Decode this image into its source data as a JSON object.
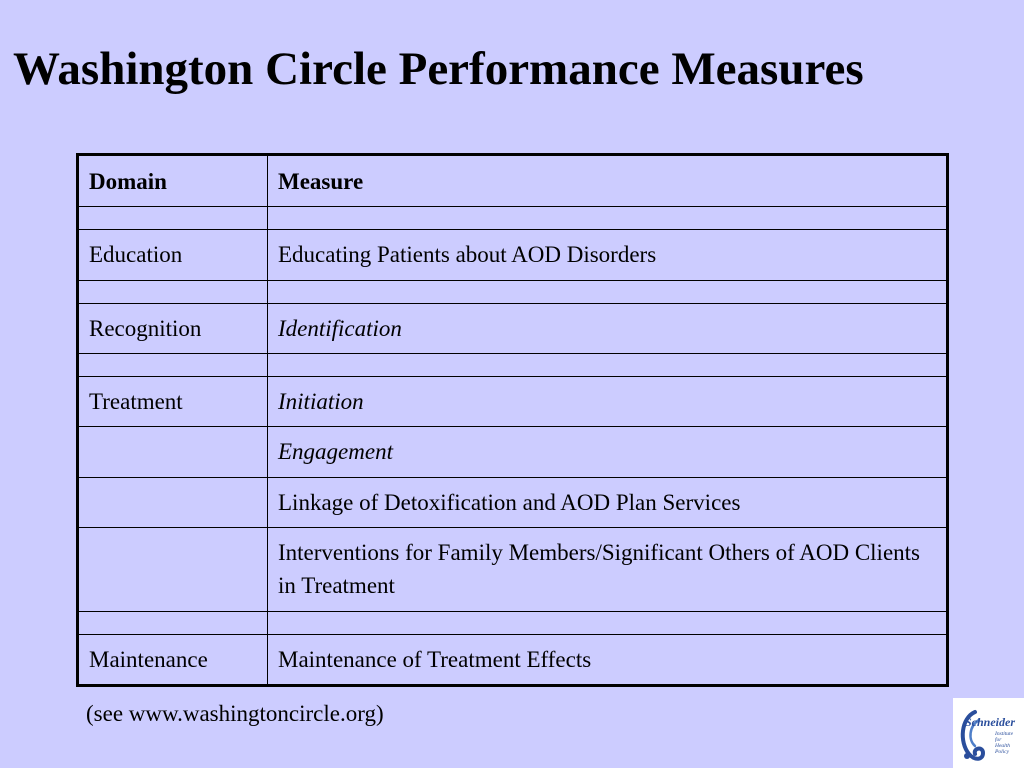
{
  "title": "Washington Circle Performance Measures",
  "table": {
    "headers": {
      "domain": "Domain",
      "measure": "Measure"
    },
    "rows": [
      {
        "domain": "",
        "measure": ""
      },
      {
        "domain": "Education",
        "measure": "Educating Patients about AOD Disorders"
      },
      {
        "domain": "",
        "measure": ""
      },
      {
        "domain": "Recognition",
        "measure": "Identification"
      },
      {
        "domain": "",
        "measure": ""
      },
      {
        "domain": "Treatment",
        "measure": "Initiation"
      },
      {
        "domain": "",
        "measure": "Engagement"
      },
      {
        "domain": "",
        "measure": "Linkage of Detoxification and AOD Plan Services"
      },
      {
        "domain": "",
        "measure": "Interventions for Family Members/Significant Others of AOD Clients in Treatment"
      },
      {
        "domain": "",
        "measure": ""
      },
      {
        "domain": "Maintenance",
        "measure": "Maintenance of Treatment Effects"
      }
    ]
  },
  "footer": "(see www.washingtoncircle.org)",
  "logo": {
    "icon": "schneider-institutes-logo-icon",
    "name": "Schneider",
    "lines": [
      "Institute",
      "for",
      "Health",
      "Policy"
    ],
    "color": "#2a4e9c"
  }
}
